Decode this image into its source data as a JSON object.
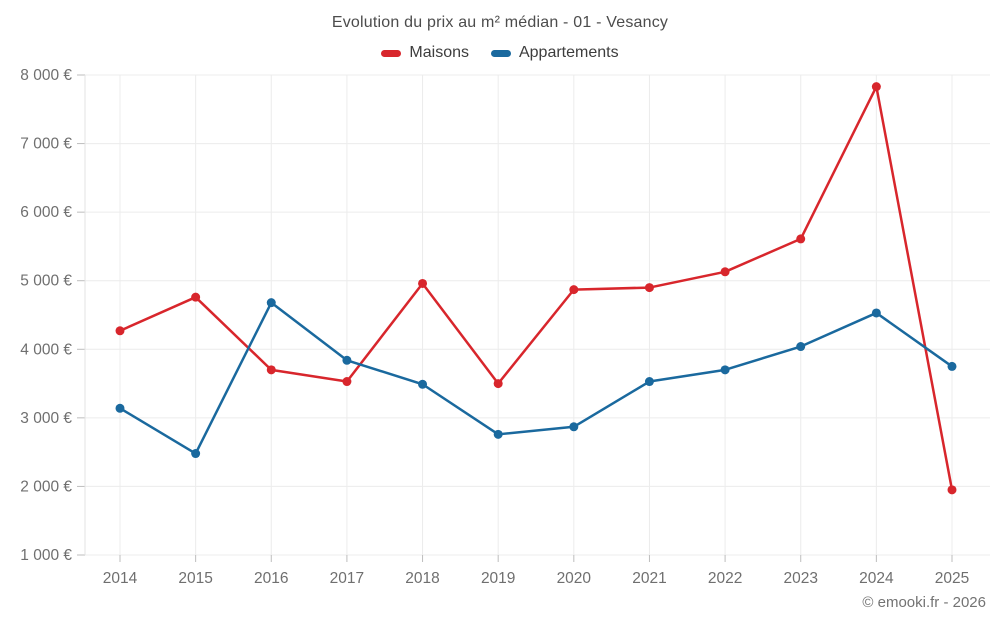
{
  "title": "Evolution du prix au m² médian - 01 - Vesancy",
  "footer": "© emooki.fr - 2026",
  "colors": {
    "maisons": "#d8262c",
    "appartements": "#1a699e",
    "gridline": "#ececec",
    "axis_line": "#e3e3e3",
    "tick": "#bdbdbd",
    "axis_label": "#6f6f6f"
  },
  "chart_data": {
    "type": "line",
    "title": "Evolution du prix au m² médian - 01 - Vesancy",
    "categories": [
      "2014",
      "2015",
      "2016",
      "2017",
      "2018",
      "2019",
      "2020",
      "2021",
      "2022",
      "2023",
      "2024",
      "2025"
    ],
    "series": [
      {
        "name": "Maisons",
        "color": "#d8262c",
        "values": [
          4270,
          4760,
          3700,
          3530,
          4960,
          3500,
          4870,
          4900,
          5130,
          5610,
          7830,
          1950
        ]
      },
      {
        "name": "Appartements",
        "color": "#1a699e",
        "values": [
          3140,
          2480,
          4680,
          3840,
          3490,
          2760,
          2870,
          3530,
          3700,
          4040,
          4530,
          3750
        ]
      }
    ],
    "ylim": [
      1000,
      8000
    ],
    "yticks": [
      {
        "value": 1000,
        "label": "1 000 €"
      },
      {
        "value": 2000,
        "label": "2 000 €"
      },
      {
        "value": 3000,
        "label": "3 000 €"
      },
      {
        "value": 4000,
        "label": "4 000 €"
      },
      {
        "value": 5000,
        "label": "5 000 €"
      },
      {
        "value": 6000,
        "label": "6 000 €"
      },
      {
        "value": 7000,
        "label": "7 000 €"
      },
      {
        "value": 8000,
        "label": "8 000 €"
      }
    ],
    "grid": true,
    "legend_position": "top",
    "marker": "circle"
  }
}
